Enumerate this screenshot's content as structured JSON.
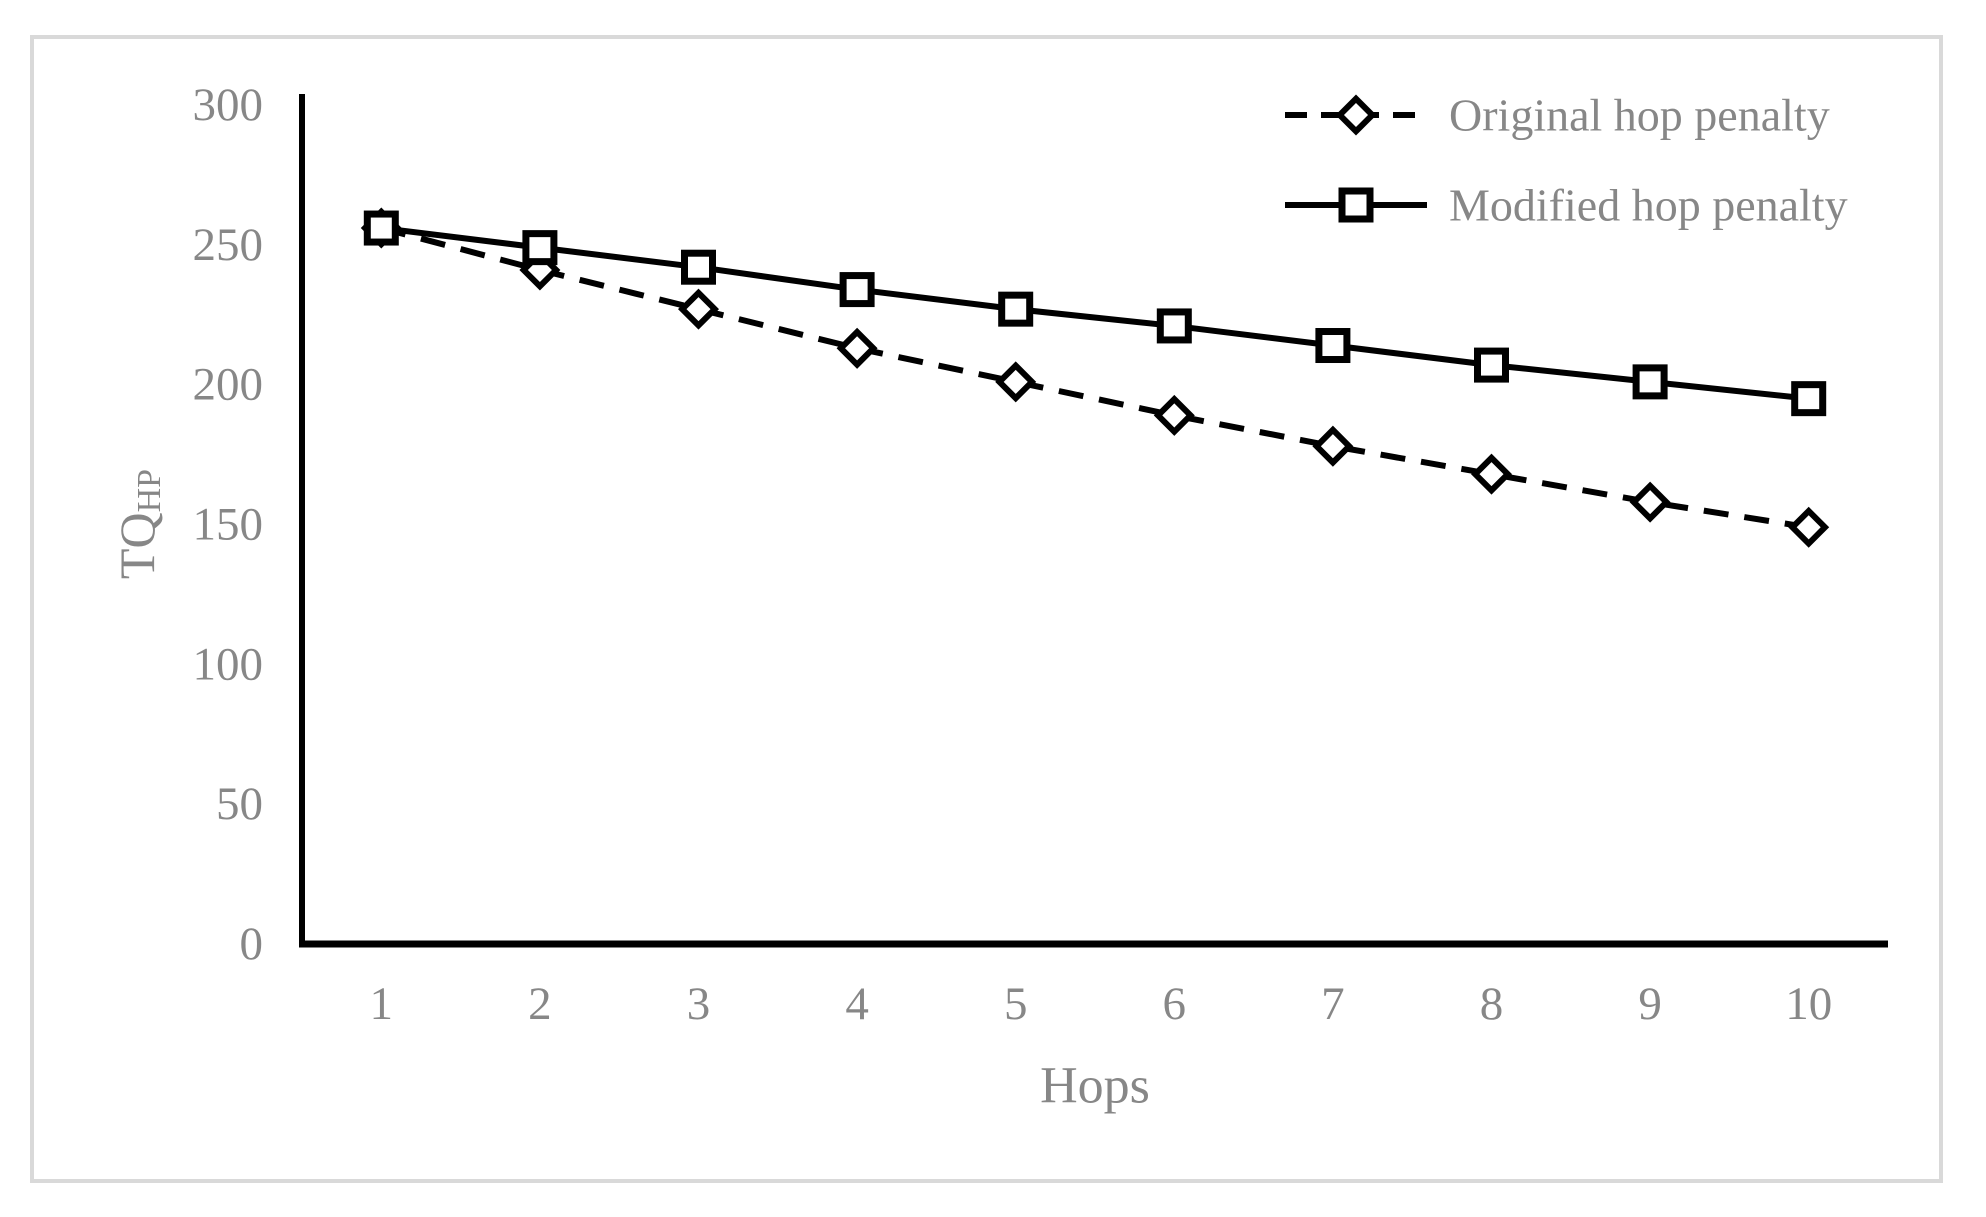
{
  "figure": {
    "background_color": "#ffffff",
    "border_color": "#d9d9d9"
  },
  "chart_data": {
    "type": "line",
    "title": "",
    "xlabel": "Hops",
    "ylabel_main": "TQ",
    "ylabel_sub": "HP",
    "x": [
      1,
      2,
      3,
      4,
      5,
      6,
      7,
      8,
      9,
      10
    ],
    "x_tick_labels": [
      "1",
      "2",
      "3",
      "4",
      "5",
      "6",
      "7",
      "8",
      "9",
      "10"
    ],
    "y_ticks": [
      0,
      50,
      100,
      150,
      200,
      250,
      300
    ],
    "y_tick_labels": [
      "0",
      "50",
      "100",
      "150",
      "200",
      "250",
      "300"
    ],
    "ylim": [
      0,
      300
    ],
    "grid": false,
    "legend_position": "top-right",
    "axis_color": "#000000",
    "label_color": "#878787",
    "marker_fill": "#ffffff",
    "series": [
      {
        "name": "Original hop penalty",
        "line_style": "dashed",
        "marker": "diamond",
        "color": "#000000",
        "values": [
          256,
          241,
          227,
          213,
          201,
          189,
          178,
          168,
          158,
          149
        ]
      },
      {
        "name": "Modified hop penalty",
        "line_style": "solid",
        "marker": "square",
        "color": "#000000",
        "values": [
          256,
          249,
          242,
          234,
          227,
          221,
          214,
          207,
          201,
          195
        ]
      }
    ]
  }
}
